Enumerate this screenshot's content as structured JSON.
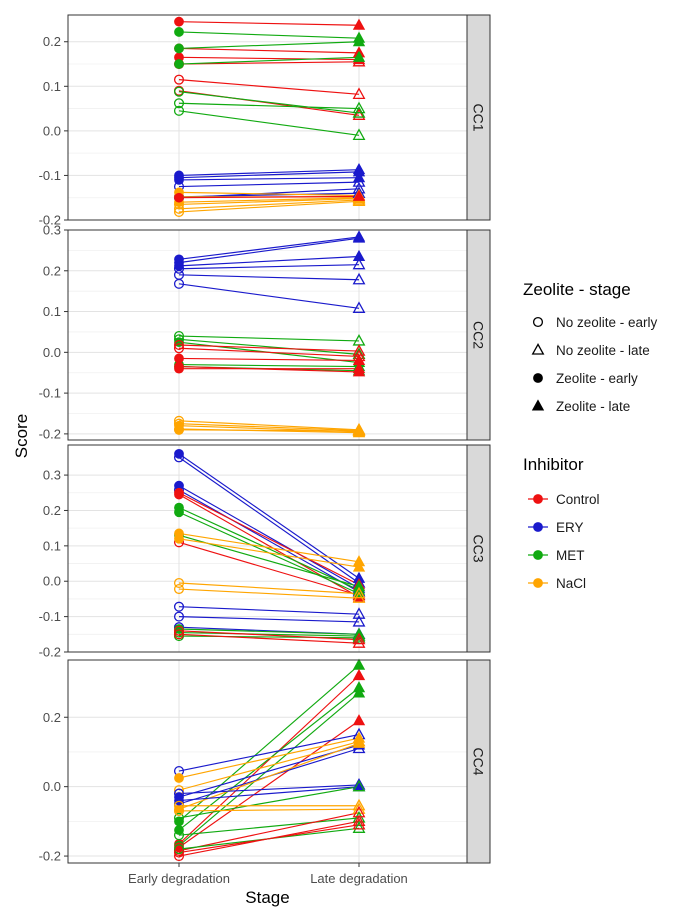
{
  "chart_data": {
    "type": "line",
    "xlabel": "Stage",
    "ylabel": "Score",
    "x_categories": [
      "Early degradation",
      "Late degradation"
    ],
    "colors": {
      "Control": "#ee1111",
      "ERY": "#1a1acc",
      "MET": "#11aa11",
      "NaCl": "#ffa500"
    },
    "legends": [
      {
        "title": "Zeolite - stage",
        "entries": [
          {
            "label": "No zeolite - early",
            "shape": "open-circle"
          },
          {
            "label": "No zeolite - late",
            "shape": "open-triangle"
          },
          {
            "label": "Zeolite - early",
            "shape": "filled-circle"
          },
          {
            "label": "Zeolite - late",
            "shape": "filled-triangle"
          }
        ]
      },
      {
        "title": "Inhibitor",
        "entries": [
          {
            "label": "Control",
            "color": "Control"
          },
          {
            "label": "ERY",
            "color": "ERY"
          },
          {
            "label": "MET",
            "color": "MET"
          },
          {
            "label": "NaCl",
            "color": "NaCl"
          }
        ]
      }
    ],
    "panels": [
      {
        "name": "CC1",
        "ylim": [
          -0.2,
          0.26
        ],
        "ticks": [
          {
            "v": -0.2,
            "label": "-0.2"
          },
          {
            "v": -0.1,
            "label": "-0.1"
          },
          {
            "v": 0.0,
            "label": "0.0"
          },
          {
            "v": 0.1,
            "label": "0.1"
          },
          {
            "v": 0.2,
            "label": "0.2"
          }
        ],
        "lines": [
          {
            "group": "Control",
            "zeolite": true,
            "early": 0.245,
            "late": 0.237
          },
          {
            "group": "Control",
            "zeolite": true,
            "early": 0.185,
            "late": 0.175
          },
          {
            "group": "Control",
            "zeolite": true,
            "early": 0.165,
            "late": 0.16
          },
          {
            "group": "Control",
            "zeolite": false,
            "early": 0.115,
            "late": 0.082
          },
          {
            "group": "Control",
            "zeolite": false,
            "early": 0.09,
            "late": 0.035
          },
          {
            "group": "Control",
            "zeolite": false,
            "early": 0.15,
            "late": 0.155
          },
          {
            "group": "MET",
            "zeolite": true,
            "early": 0.222,
            "late": 0.208
          },
          {
            "group": "MET",
            "zeolite": true,
            "early": 0.185,
            "late": 0.2
          },
          {
            "group": "MET",
            "zeolite": true,
            "early": 0.15,
            "late": 0.165
          },
          {
            "group": "MET",
            "zeolite": false,
            "early": 0.088,
            "late": 0.04
          },
          {
            "group": "MET",
            "zeolite": false,
            "early": 0.062,
            "late": 0.05
          },
          {
            "group": "MET",
            "zeolite": false,
            "early": 0.045,
            "late": -0.01
          },
          {
            "group": "ERY",
            "zeolite": true,
            "early": -0.1,
            "late": -0.087
          },
          {
            "group": "ERY",
            "zeolite": true,
            "early": -0.105,
            "late": -0.092
          },
          {
            "group": "ERY",
            "zeolite": true,
            "early": -0.11,
            "late": -0.105
          },
          {
            "group": "ERY",
            "zeolite": false,
            "early": -0.125,
            "late": -0.115
          },
          {
            "group": "ERY",
            "zeolite": false,
            "early": -0.15,
            "late": -0.13
          },
          {
            "group": "ERY",
            "zeolite": false,
            "early": -0.148,
            "late": -0.14
          },
          {
            "group": "NaCl",
            "zeolite": true,
            "early": -0.138,
            "late": -0.145
          },
          {
            "group": "NaCl",
            "zeolite": true,
            "early": -0.148,
            "late": -0.148
          },
          {
            "group": "NaCl",
            "zeolite": true,
            "early": -0.16,
            "late": -0.15
          },
          {
            "group": "NaCl",
            "zeolite": false,
            "early": -0.165,
            "late": -0.152
          },
          {
            "group": "NaCl",
            "zeolite": false,
            "early": -0.175,
            "late": -0.155
          },
          {
            "group": "NaCl",
            "zeolite": false,
            "early": -0.182,
            "late": -0.158
          },
          {
            "group": "Control",
            "zeolite": true,
            "early": -0.15,
            "late": -0.147
          }
        ]
      },
      {
        "name": "CC2",
        "ylim": [
          -0.215,
          0.3
        ],
        "ticks": [
          {
            "v": -0.2,
            "label": "-0.2"
          },
          {
            "v": -0.1,
            "label": "-0.1"
          },
          {
            "v": 0.0,
            "label": "0.0"
          },
          {
            "v": 0.1,
            "label": "0.1"
          },
          {
            "v": 0.2,
            "label": "0.2"
          },
          {
            "v": 0.3,
            "label": "0.3"
          }
        ],
        "lines": [
          {
            "group": "ERY",
            "zeolite": true,
            "early": 0.228,
            "late": 0.283
          },
          {
            "group": "ERY",
            "zeolite": true,
            "early": 0.22,
            "late": 0.28
          },
          {
            "group": "ERY",
            "zeolite": true,
            "early": 0.212,
            "late": 0.235
          },
          {
            "group": "ERY",
            "zeolite": false,
            "early": 0.205,
            "late": 0.215
          },
          {
            "group": "ERY",
            "zeolite": false,
            "early": 0.19,
            "late": 0.178
          },
          {
            "group": "ERY",
            "zeolite": false,
            "early": 0.168,
            "late": 0.108
          },
          {
            "group": "MET",
            "zeolite": false,
            "early": 0.04,
            "late": 0.028
          },
          {
            "group": "MET",
            "zeolite": false,
            "early": 0.032,
            "late": -0.005
          },
          {
            "group": "MET",
            "zeolite": true,
            "early": 0.025,
            "late": -0.025
          },
          {
            "group": "MET",
            "zeolite": true,
            "early": -0.03,
            "late": -0.035
          },
          {
            "group": "MET",
            "zeolite": true,
            "early": -0.035,
            "late": -0.045
          },
          {
            "group": "Control",
            "zeolite": false,
            "early": 0.018,
            "late": 0.003
          },
          {
            "group": "Control",
            "zeolite": false,
            "early": 0.01,
            "late": -0.01
          },
          {
            "group": "Control",
            "zeolite": true,
            "early": -0.015,
            "late": -0.02
          },
          {
            "group": "Control",
            "zeolite": true,
            "early": -0.035,
            "late": -0.048
          },
          {
            "group": "Control",
            "zeolite": true,
            "early": -0.04,
            "late": -0.04
          },
          {
            "group": "NaCl",
            "zeolite": false,
            "early": -0.168,
            "late": -0.19
          },
          {
            "group": "NaCl",
            "zeolite": false,
            "early": -0.175,
            "late": -0.192
          },
          {
            "group": "NaCl",
            "zeolite": true,
            "early": -0.18,
            "late": -0.195
          },
          {
            "group": "NaCl",
            "zeolite": true,
            "early": -0.188,
            "late": -0.197
          },
          {
            "group": "NaCl",
            "zeolite": false,
            "early": -0.19,
            "late": -0.193
          }
        ]
      },
      {
        "name": "CC3",
        "ylim": [
          -0.2,
          0.385
        ],
        "ticks": [
          {
            "v": -0.2,
            "label": "-0.2"
          },
          {
            "v": -0.1,
            "label": "-0.1"
          },
          {
            "v": 0.0,
            "label": "0.0"
          },
          {
            "v": 0.1,
            "label": "0.1"
          },
          {
            "v": 0.2,
            "label": "0.2"
          },
          {
            "v": 0.3,
            "label": "0.3"
          }
        ],
        "lines": [
          {
            "group": "ERY",
            "zeolite": true,
            "early": 0.36,
            "late": 0.008
          },
          {
            "group": "ERY",
            "zeolite": false,
            "early": 0.35,
            "late": -0.005
          },
          {
            "group": "ERY",
            "zeolite": true,
            "early": 0.27,
            "late": -0.02
          },
          {
            "group": "ERY",
            "zeolite": false,
            "early": 0.258,
            "late": -0.03
          },
          {
            "group": "Control",
            "zeolite": true,
            "early": 0.25,
            "late": -0.01
          },
          {
            "group": "Control",
            "zeolite": true,
            "early": 0.245,
            "late": -0.045
          },
          {
            "group": "Control",
            "zeolite": false,
            "early": 0.11,
            "late": -0.04
          },
          {
            "group": "MET",
            "zeolite": true,
            "early": 0.208,
            "late": -0.025
          },
          {
            "group": "MET",
            "zeolite": true,
            "early": 0.195,
            "late": -0.035
          },
          {
            "group": "MET",
            "zeolite": true,
            "early": 0.13,
            "late": -0.015
          },
          {
            "group": "NaCl",
            "zeolite": true,
            "early": 0.135,
            "late": 0.055
          },
          {
            "group": "NaCl",
            "zeolite": true,
            "early": 0.12,
            "late": 0.04
          },
          {
            "group": "NaCl",
            "zeolite": false,
            "early": -0.005,
            "late": -0.035
          },
          {
            "group": "NaCl",
            "zeolite": false,
            "early": -0.022,
            "late": -0.048
          },
          {
            "group": "ERY",
            "zeolite": false,
            "early": -0.072,
            "late": -0.093
          },
          {
            "group": "ERY",
            "zeolite": false,
            "early": -0.1,
            "late": -0.115
          },
          {
            "group": "ERY",
            "zeolite": false,
            "early": -0.13,
            "late": -0.15
          },
          {
            "group": "MET",
            "zeolite": false,
            "early": -0.145,
            "late": -0.155
          },
          {
            "group": "MET",
            "zeolite": false,
            "early": -0.155,
            "late": -0.16
          },
          {
            "group": "MET",
            "zeolite": true,
            "early": -0.135,
            "late": -0.15
          },
          {
            "group": "Control",
            "zeolite": false,
            "early": -0.14,
            "late": -0.165
          },
          {
            "group": "Control",
            "zeolite": false,
            "early": -0.15,
            "late": -0.175
          }
        ]
      },
      {
        "name": "CC4",
        "ylim": [
          -0.22,
          0.365
        ],
        "ticks": [
          {
            "v": -0.2,
            "label": "-0.2"
          },
          {
            "v": 0.0,
            "label": "0.0"
          },
          {
            "v": 0.2,
            "label": "0.2"
          }
        ],
        "lines": [
          {
            "group": "MET",
            "zeolite": true,
            "early": -0.1,
            "late": 0.35
          },
          {
            "group": "Control",
            "zeolite": true,
            "early": -0.165,
            "late": 0.32
          },
          {
            "group": "MET",
            "zeolite": true,
            "early": -0.125,
            "late": 0.285
          },
          {
            "group": "MET",
            "zeolite": true,
            "early": -0.17,
            "late": 0.27
          },
          {
            "group": "Control",
            "zeolite": true,
            "early": -0.175,
            "late": 0.19
          },
          {
            "group": "ERY",
            "zeolite": false,
            "early": 0.045,
            "late": 0.15
          },
          {
            "group": "NaCl",
            "zeolite": true,
            "early": 0.025,
            "late": 0.14
          },
          {
            "group": "NaCl",
            "zeolite": false,
            "early": -0.01,
            "late": 0.13
          },
          {
            "group": "ERY",
            "zeolite": true,
            "early": -0.03,
            "late": 0.12
          },
          {
            "group": "ERY",
            "zeolite": false,
            "early": -0.05,
            "late": 0.11
          },
          {
            "group": "NaCl",
            "zeolite": true,
            "early": -0.065,
            "late": 0.125
          },
          {
            "group": "ERY",
            "zeolite": false,
            "early": -0.02,
            "late": 0.005
          },
          {
            "group": "ERY",
            "zeolite": true,
            "early": -0.04,
            "late": 0.0
          },
          {
            "group": "MET",
            "zeolite": false,
            "early": -0.09,
            "late": 0.0
          },
          {
            "group": "NaCl",
            "zeolite": false,
            "early": -0.055,
            "late": -0.055
          },
          {
            "group": "NaCl",
            "zeolite": false,
            "early": -0.07,
            "late": -0.065
          },
          {
            "group": "MET",
            "zeolite": false,
            "early": -0.14,
            "late": -0.09
          },
          {
            "group": "Control",
            "zeolite": false,
            "early": -0.185,
            "late": -0.075
          },
          {
            "group": "Control",
            "zeolite": false,
            "early": -0.2,
            "late": -0.1
          },
          {
            "group": "MET",
            "zeolite": false,
            "early": -0.18,
            "late": -0.12
          },
          {
            "group": "Control",
            "zeolite": false,
            "early": -0.19,
            "late": -0.11
          }
        ]
      }
    ]
  }
}
